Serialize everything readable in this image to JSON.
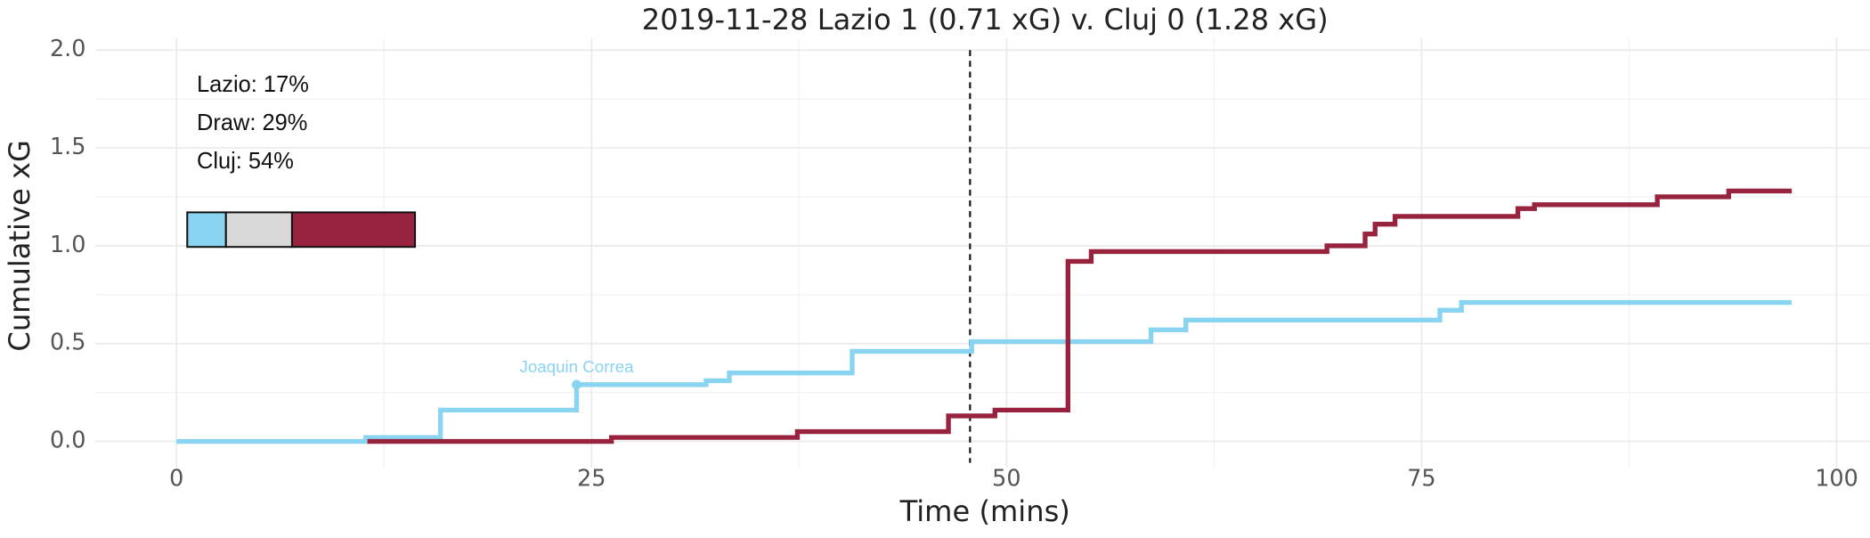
{
  "chart_data": {
    "type": "step",
    "title": "2019-11-28 Lazio 1 (0.71 xG) v. Cluj 0 (1.28 xG)",
    "x_label": "Time (mins)",
    "y_label": "Cumulative xG",
    "xlim": [
      0,
      100
    ],
    "ylim": [
      0,
      2
    ],
    "xticks": [
      0,
      25,
      50,
      75,
      100
    ],
    "yticks": [
      {
        "value": 0,
        "label": "0.0"
      },
      {
        "value": 0.5,
        "label": "0.5"
      },
      {
        "value": 1,
        "label": "1.0"
      },
      {
        "value": 1.5,
        "label": "1.5"
      },
      {
        "value": 2,
        "label": "2.0"
      }
    ],
    "xminor": [
      12.5,
      37.5,
      62.5,
      87.5
    ],
    "yminor": [
      0.25,
      0.75,
      1.25,
      1.75
    ],
    "grid": true,
    "halftime": 47.8,
    "series": [
      {
        "name": "Lazio",
        "color": "#89d4f0",
        "x": [
          0,
          11.4,
          15.9,
          24.1,
          31.9,
          33.3,
          40.7,
          47.9,
          58.7,
          60.8,
          76.1,
          77.4,
          97.3
        ],
        "values": [
          0,
          0.02,
          0.16,
          0.29,
          0.31,
          0.35,
          0.46,
          0.51,
          0.57,
          0.62,
          0.67,
          0.71,
          0.71
        ]
      },
      {
        "name": "Cluj",
        "color": "#98233f",
        "x": [
          11.5,
          26.2,
          37.4,
          46.5,
          49.3,
          53.7,
          55.1,
          69.3,
          71.6,
          72.2,
          73.4,
          80.8,
          81.8,
          89.2,
          93.5,
          97.3
        ],
        "values": [
          0,
          0.02,
          0.05,
          0.13,
          0.16,
          0.92,
          0.97,
          1.0,
          1.06,
          1.11,
          1.15,
          1.19,
          1.21,
          1.25,
          1.28,
          1.28
        ]
      }
    ],
    "annotations": [
      {
        "text": "Joaquin Correa",
        "x": 24.1,
        "y": 0.29
      }
    ],
    "win_probs": [
      {
        "label": "Lazio: 17%",
        "value": 17,
        "color": "#89d4f0"
      },
      {
        "label": "Draw: 29%",
        "value": 29,
        "color": "#d9d9d9"
      },
      {
        "label": "Cluj: 54%",
        "value": 54,
        "color": "#98233f"
      }
    ]
  }
}
